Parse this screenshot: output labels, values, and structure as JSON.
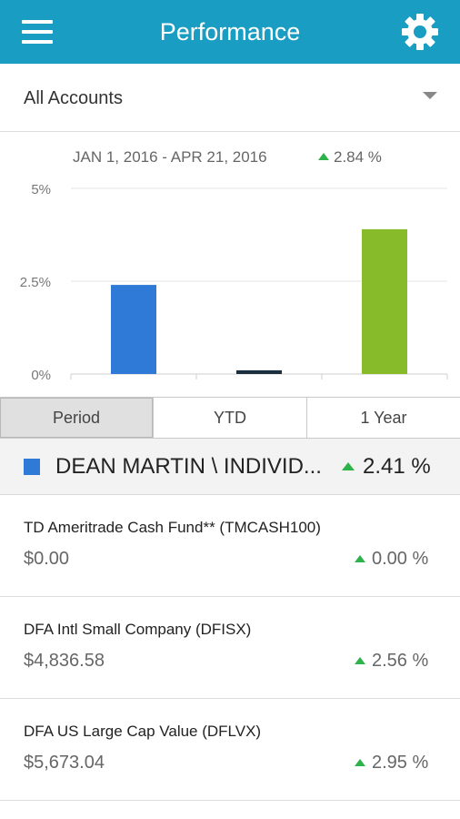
{
  "header": {
    "title": "Performance",
    "colors": {
      "appbar": "#1a9dc2"
    }
  },
  "account_selector": {
    "value": "All Accounts"
  },
  "summary": {
    "date_range": "JAN 1, 2016 - APR 21, 2016",
    "change": "2.84 %",
    "trend": "up"
  },
  "chart_data": {
    "type": "bar",
    "categories": [
      "Period",
      "YTD",
      "1 Year"
    ],
    "values": [
      2.4,
      0.1,
      3.9
    ],
    "ylim": [
      0,
      5
    ],
    "yticks": [
      "5%",
      "2.5%",
      "0%"
    ],
    "ytick_values": [
      5,
      2.5,
      0
    ],
    "colors": [
      "#2e7ad6",
      "#1b2f3f",
      "#88bb2a"
    ],
    "grid": true,
    "legend": "none"
  },
  "tabs": [
    {
      "label": "Period",
      "active": true
    },
    {
      "label": "YTD",
      "active": false
    },
    {
      "label": "1 Year",
      "active": false
    }
  ],
  "account": {
    "name": "DEAN MARTIN \\ INDIVID...",
    "change": "2.41 %",
    "swatch_color": "#2e7ad6"
  },
  "holdings": [
    {
      "name": "TD Ameritrade Cash Fund** (TMCASH100)",
      "value": "$0.00",
      "change": "0.00 %"
    },
    {
      "name": "DFA Intl Small Company (DFISX)",
      "value": "$4,836.58",
      "change": "2.56 %"
    },
    {
      "name": "DFA US Large Cap Value (DFLVX)",
      "value": "$5,673.04",
      "change": "2.95 %"
    }
  ]
}
